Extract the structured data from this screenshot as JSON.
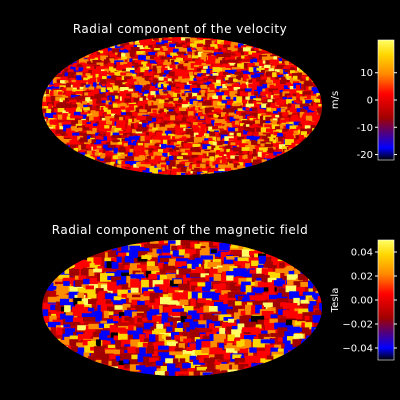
{
  "colors": {
    "background": "#000000",
    "text": "#ffffff",
    "colormap": [
      "#000000",
      "#0000ff",
      "#a00000",
      "#ff0000",
      "#ff8c00",
      "#ffd700",
      "#ffff66"
    ]
  },
  "chart_data": [
    {
      "type": "heatmap",
      "projection": "mollweide",
      "title": "Radial component of the velocity",
      "colorbar": {
        "label": "m/s",
        "range": [
          -22,
          22
        ],
        "ticks": [
          10,
          0,
          -10,
          -20
        ],
        "tick_labels": [
          "10",
          "0",
          "-10",
          "-20"
        ]
      },
      "field_texture": "fine"
    },
    {
      "type": "heatmap",
      "projection": "mollweide",
      "title": "Radial component of the magnetic field",
      "colorbar": {
        "label": "Tesla",
        "range": [
          -0.05,
          0.05
        ],
        "ticks": [
          0.04,
          0.02,
          0.0,
          -0.02,
          -0.04
        ],
        "tick_labels": [
          "0.04",
          "0.02",
          "0.00",
          "−0.02",
          "−0.04"
        ]
      },
      "field_texture": "coarse"
    }
  ]
}
